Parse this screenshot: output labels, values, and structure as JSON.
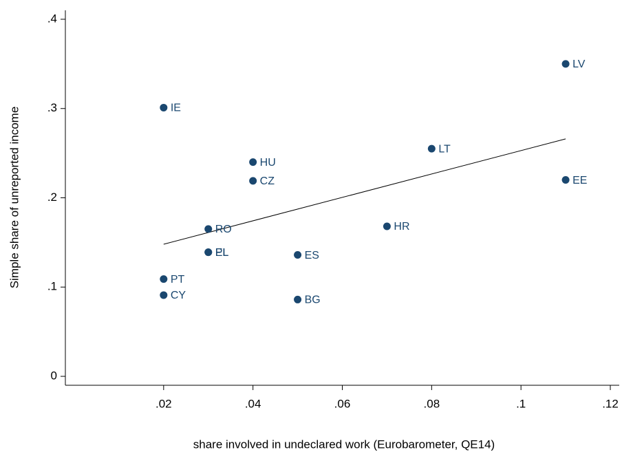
{
  "chart_data": {
    "type": "scatter",
    "x_label": "share involved in undeclared work (Eurobarometer, QE14)",
    "y_label": "Simple share of unreported income",
    "color": "#1a476f",
    "labels": [
      "IE",
      "LV",
      "LT",
      "HU",
      "CZ",
      "EE",
      "RO",
      "HR",
      "EL",
      "PL",
      "ES",
      "PT",
      "CY",
      "BG"
    ],
    "x": [
      0.02,
      0.11,
      0.08,
      0.04,
      0.04,
      0.11,
      0.03,
      0.07,
      0.03,
      0.03,
      0.05,
      0.02,
      0.02,
      0.05
    ],
    "values": [
      0.301,
      0.35,
      0.255,
      0.24,
      0.219,
      0.22,
      0.165,
      0.168,
      0.139,
      0.139,
      0.136,
      0.109,
      0.091,
      0.086
    ],
    "fit_line": {
      "x": [
        0.02,
        0.11
      ],
      "values": [
        0.148,
        0.266
      ]
    },
    "xlim": [
      -0.002,
      0.122
    ],
    "ylim": [
      -0.01,
      0.41
    ],
    "xticks": [
      {
        "value": 0.02,
        "label": ".02"
      },
      {
        "value": 0.04,
        "label": ".04"
      },
      {
        "value": 0.06,
        "label": ".06"
      },
      {
        "value": 0.08,
        "label": ".08"
      },
      {
        "value": 0.1,
        "label": ".1"
      },
      {
        "value": 0.12,
        "label": ".12"
      }
    ],
    "yticks": [
      0,
      {
        "value": 0.1,
        "label": ".1"
      },
      {
        "value": 0.2,
        "label": ".2"
      },
      {
        "value": 0.3,
        "label": ".3"
      },
      {
        "value": 0.4,
        "label": ".4"
      }
    ]
  }
}
